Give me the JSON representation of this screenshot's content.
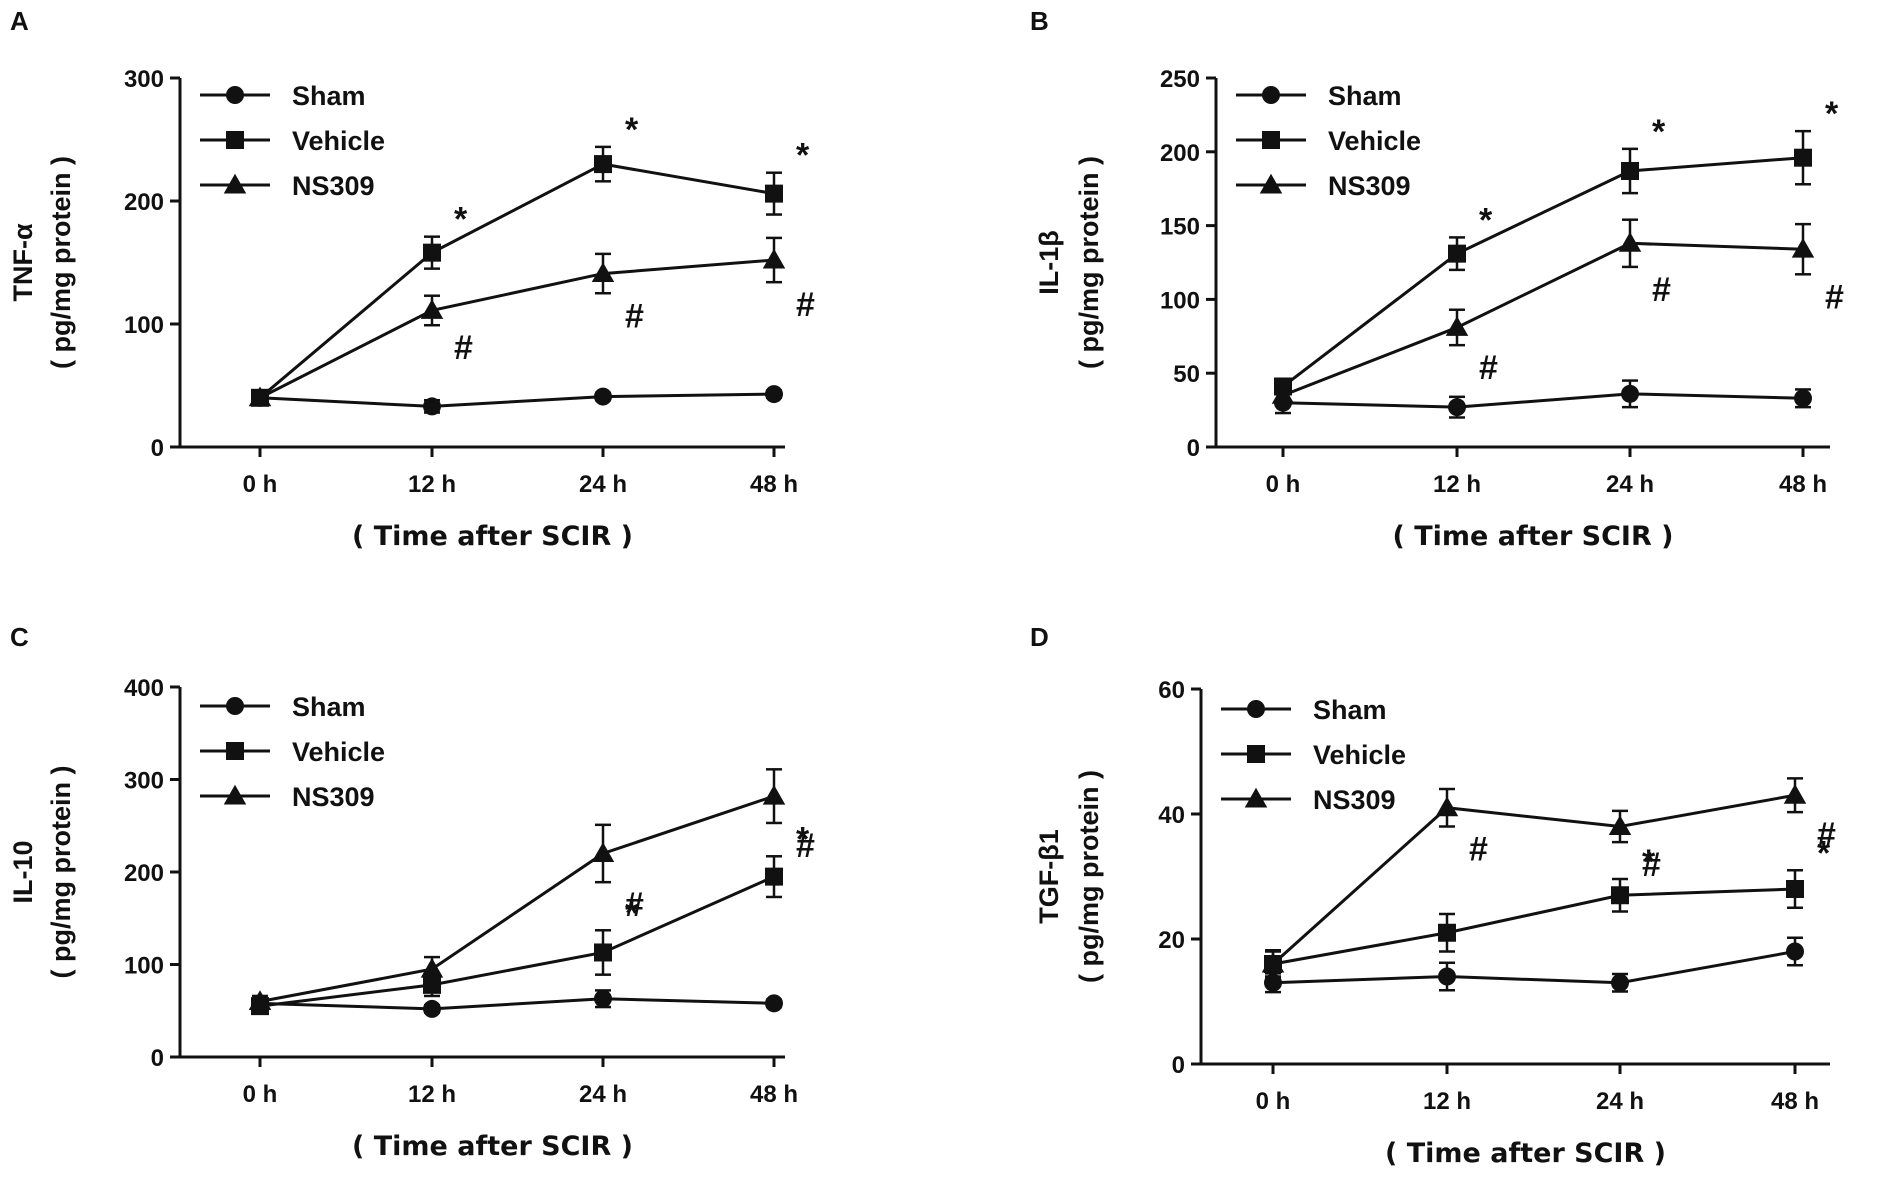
{
  "chart_data": [
    {
      "panel": "A",
      "type": "line",
      "ylabel_main": "TNF-α",
      "ylabel_unit": "( pg/mg protein )",
      "xlabel": "( Time after SCIR )",
      "categories": [
        "0 h",
        "12 h",
        "24 h",
        "48 h"
      ],
      "ylim": [
        0,
        300
      ],
      "yticks": [
        0,
        100,
        200,
        300
      ],
      "legend_position": "top-left",
      "series": [
        {
          "name": "Sham",
          "marker": "circle",
          "values": [
            40,
            33,
            41,
            43
          ],
          "errors": [
            3,
            5,
            3,
            3
          ]
        },
        {
          "name": "Vehicle",
          "marker": "square",
          "values": [
            40,
            158,
            230,
            206
          ],
          "errors": [
            4,
            13,
            14,
            17
          ]
        },
        {
          "name": "NS309",
          "marker": "triangle",
          "values": [
            40,
            111,
            141,
            152
          ],
          "errors": [
            4,
            12,
            16,
            18
          ]
        }
      ],
      "annotations": [
        {
          "text": "*",
          "series": "Vehicle",
          "cat": 1
        },
        {
          "text": "*",
          "series": "Vehicle",
          "cat": 2
        },
        {
          "text": "*",
          "series": "Vehicle",
          "cat": 3
        },
        {
          "text": "#",
          "series": "NS309",
          "cat": 1
        },
        {
          "text": "#",
          "series": "NS309",
          "cat": 2
        },
        {
          "text": "#",
          "series": "NS309",
          "cat": 3
        }
      ]
    },
    {
      "panel": "B",
      "type": "line",
      "ylabel_main": "IL-1β",
      "ylabel_unit": "( pg/mg protein )",
      "xlabel": "( Time after SCIR )",
      "categories": [
        "0 h",
        "12 h",
        "24 h",
        "48 h"
      ],
      "ylim": [
        0,
        250
      ],
      "yticks": [
        0,
        50,
        100,
        150,
        200,
        250
      ],
      "legend_position": "top-left",
      "series": [
        {
          "name": "Sham",
          "marker": "circle",
          "values": [
            30,
            27,
            36,
            33
          ],
          "errors": [
            7,
            7,
            9,
            6
          ]
        },
        {
          "name": "Vehicle",
          "marker": "square",
          "values": [
            41,
            131,
            187,
            196
          ],
          "errors": [
            5,
            11,
            15,
            18
          ]
        },
        {
          "name": "NS309",
          "marker": "triangle",
          "values": [
            35,
            81,
            138,
            134
          ],
          "errors": [
            5,
            12,
            16,
            17
          ]
        }
      ],
      "annotations": [
        {
          "text": "*",
          "series": "Vehicle",
          "cat": 1
        },
        {
          "text": "*",
          "series": "Vehicle",
          "cat": 2
        },
        {
          "text": "*",
          "series": "Vehicle",
          "cat": 3
        },
        {
          "text": "#",
          "series": "NS309",
          "cat": 1
        },
        {
          "text": "#",
          "series": "NS309",
          "cat": 2
        },
        {
          "text": "#",
          "series": "NS309",
          "cat": 3
        }
      ]
    },
    {
      "panel": "C",
      "type": "line",
      "ylabel_main": "IL-10",
      "ylabel_unit": "( pg/mg protein )",
      "xlabel": "( Time after SCIR )",
      "categories": [
        "0 h",
        "12 h",
        "24 h",
        "48 h"
      ],
      "ylim": [
        0,
        400
      ],
      "yticks": [
        0,
        100,
        200,
        300,
        400
      ],
      "legend_position": "top-left",
      "series": [
        {
          "name": "Sham",
          "marker": "circle",
          "values": [
            58,
            52,
            63,
            58
          ],
          "errors": [
            5,
            4,
            9,
            4
          ]
        },
        {
          "name": "Vehicle",
          "marker": "square",
          "values": [
            55,
            78,
            113,
            195
          ],
          "errors": [
            6,
            12,
            24,
            22
          ]
        },
        {
          "name": "NS309",
          "marker": "triangle",
          "values": [
            60,
            95,
            220,
            282
          ],
          "errors": [
            6,
            13,
            31,
            29
          ]
        }
      ],
      "annotations": [
        {
          "text": "*",
          "series": "Vehicle",
          "cat": 2
        },
        {
          "text": "*",
          "series": "Vehicle",
          "cat": 3
        },
        {
          "text": "#",
          "series": "NS309",
          "cat": 2
        },
        {
          "text": "#",
          "series": "NS309",
          "cat": 3
        }
      ]
    },
    {
      "panel": "D",
      "type": "line",
      "ylabel_main": "TGF-β1",
      "ylabel_unit": "( pg/mg protein )",
      "xlabel": "( Time after SCIR )",
      "categories": [
        "0 h",
        "12 h",
        "24 h",
        "48 h"
      ],
      "ylim": [
        0,
        60
      ],
      "yticks": [
        0,
        20,
        40,
        60
      ],
      "legend_position": "top-left",
      "series": [
        {
          "name": "Sham",
          "marker": "circle",
          "values": [
            13,
            14,
            13,
            18
          ],
          "errors": [
            1.5,
            2.2,
            1.4,
            2.2
          ]
        },
        {
          "name": "Vehicle",
          "marker": "square",
          "values": [
            16,
            21,
            27,
            28
          ],
          "errors": [
            2.2,
            3.0,
            2.6,
            3.0
          ]
        },
        {
          "name": "NS309",
          "marker": "triangle",
          "values": [
            16,
            41,
            38,
            43
          ],
          "errors": [
            2.0,
            3.0,
            2.5,
            2.7
          ]
        }
      ],
      "annotations": [
        {
          "text": "*",
          "series": "Vehicle",
          "cat": 2
        },
        {
          "text": "*",
          "series": "Vehicle",
          "cat": 3
        },
        {
          "text": "#",
          "series": "NS309",
          "cat": 1
        },
        {
          "text": "#",
          "series": "NS309",
          "cat": 2
        },
        {
          "text": "#",
          "series": "NS309",
          "cat": 3
        }
      ]
    }
  ]
}
